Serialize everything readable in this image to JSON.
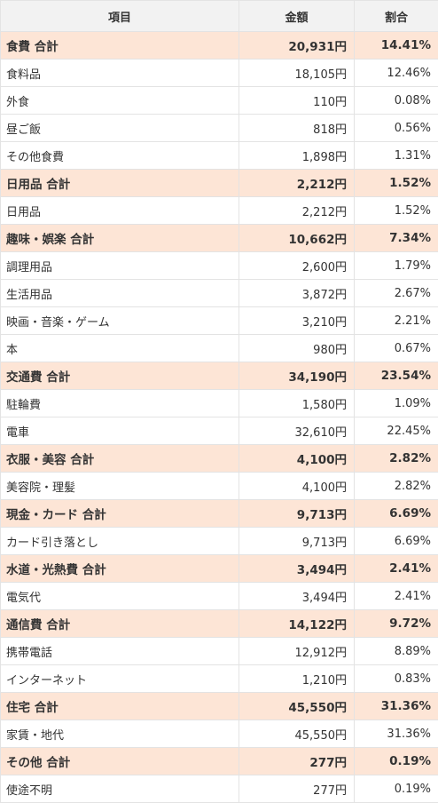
{
  "headers": {
    "item": "項目",
    "amount": "金額",
    "ratio": "割合"
  },
  "rows": [
    {
      "type": "total",
      "name": "食費 合計",
      "amount": "20,931円",
      "ratio": "14.41%"
    },
    {
      "type": "item",
      "name": "食料品",
      "amount": "18,105円",
      "ratio": "12.46%"
    },
    {
      "type": "item",
      "name": "外食",
      "amount": "110円",
      "ratio": "0.08%"
    },
    {
      "type": "item",
      "name": "昼ご飯",
      "amount": "818円",
      "ratio": "0.56%"
    },
    {
      "type": "item",
      "name": "その他食費",
      "amount": "1,898円",
      "ratio": "1.31%"
    },
    {
      "type": "total",
      "name": "日用品 合計",
      "amount": "2,212円",
      "ratio": "1.52%"
    },
    {
      "type": "item",
      "name": "日用品",
      "amount": "2,212円",
      "ratio": "1.52%"
    },
    {
      "type": "total",
      "name": "趣味・娯楽 合計",
      "amount": "10,662円",
      "ratio": "7.34%"
    },
    {
      "type": "item",
      "name": "調理用品",
      "amount": "2,600円",
      "ratio": "1.79%"
    },
    {
      "type": "item",
      "name": "生活用品",
      "amount": "3,872円",
      "ratio": "2.67%"
    },
    {
      "type": "item",
      "name": "映画・音楽・ゲーム",
      "amount": "3,210円",
      "ratio": "2.21%"
    },
    {
      "type": "item",
      "name": "本",
      "amount": "980円",
      "ratio": "0.67%"
    },
    {
      "type": "total",
      "name": "交通費 合計",
      "amount": "34,190円",
      "ratio": "23.54%"
    },
    {
      "type": "item",
      "name": "駐輪費",
      "amount": "1,580円",
      "ratio": "1.09%"
    },
    {
      "type": "item",
      "name": "電車",
      "amount": "32,610円",
      "ratio": "22.45%"
    },
    {
      "type": "total",
      "name": "衣服・美容 合計",
      "amount": "4,100円",
      "ratio": "2.82%"
    },
    {
      "type": "item",
      "name": "美容院・理髪",
      "amount": "4,100円",
      "ratio": "2.82%"
    },
    {
      "type": "total",
      "name": "現金・カード 合計",
      "amount": "9,713円",
      "ratio": "6.69%"
    },
    {
      "type": "item",
      "name": "カード引き落とし",
      "amount": "9,713円",
      "ratio": "6.69%"
    },
    {
      "type": "total",
      "name": "水道・光熱費 合計",
      "amount": "3,494円",
      "ratio": "2.41%"
    },
    {
      "type": "item",
      "name": "電気代",
      "amount": "3,494円",
      "ratio": "2.41%"
    },
    {
      "type": "total",
      "name": "通信費 合計",
      "amount": "14,122円",
      "ratio": "9.72%"
    },
    {
      "type": "item",
      "name": "携帯電話",
      "amount": "12,912円",
      "ratio": "8.89%"
    },
    {
      "type": "item",
      "name": "インターネット",
      "amount": "1,210円",
      "ratio": "0.83%"
    },
    {
      "type": "total",
      "name": "住宅 合計",
      "amount": "45,550円",
      "ratio": "31.36%"
    },
    {
      "type": "item",
      "name": "家賃・地代",
      "amount": "45,550円",
      "ratio": "31.36%"
    },
    {
      "type": "total",
      "name": "その他 合計",
      "amount": "277円",
      "ratio": "0.19%"
    },
    {
      "type": "item",
      "name": "使途不明",
      "amount": "277円",
      "ratio": "0.19%"
    }
  ]
}
